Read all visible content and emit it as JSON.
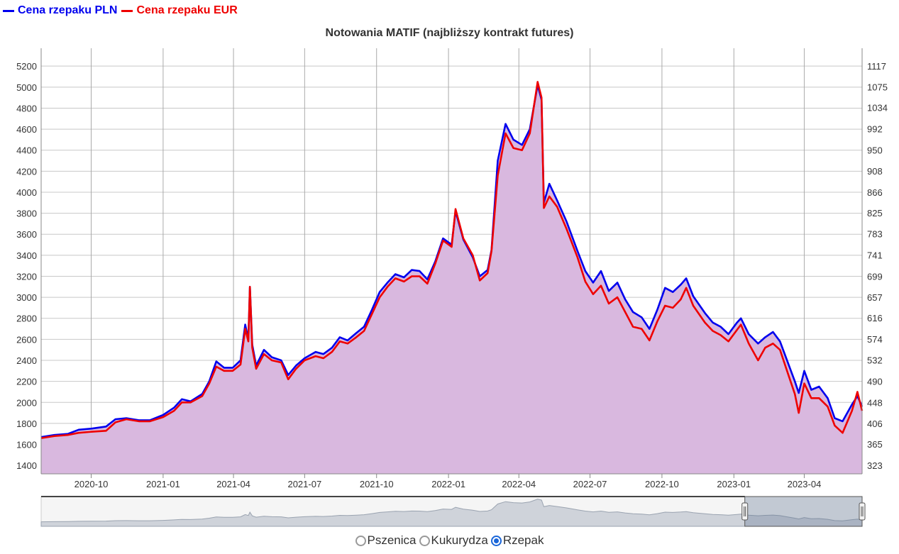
{
  "legend": {
    "pln_label": "Cena rzepaku PLN",
    "eur_label": "Cena rzepaku EUR",
    "pln_color": "#0000ee",
    "eur_color": "#ee0000"
  },
  "radios": {
    "options": [
      "Pszenica",
      "Kukurydza",
      "Rzepak"
    ],
    "selected": "Rzepak"
  },
  "chart_data": {
    "type": "area",
    "title": "Notowania MATIF (najbliższy kontrakt futures)",
    "fill_color": "#d9b8df",
    "x_ticks": [
      "2020-10",
      "2021-01",
      "2021-04",
      "2021-07",
      "2021-10",
      "2022-01",
      "2022-04",
      "2022-07",
      "2022-10",
      "2023-01",
      "2023-04"
    ],
    "x_range": [
      "2020-07-29",
      "2023-06-14"
    ],
    "y_left": {
      "ticks": [
        1400,
        1600,
        1800,
        2000,
        2200,
        2400,
        2600,
        2800,
        3000,
        3200,
        3400,
        3600,
        3800,
        4000,
        4200,
        4400,
        4600,
        4800,
        5000,
        5200
      ],
      "range": [
        1320,
        5370
      ]
    },
    "y_right": {
      "ticks": [
        323,
        365,
        406,
        448,
        490,
        532,
        574,
        616,
        657,
        699,
        741,
        783,
        825,
        866,
        908,
        950,
        992,
        1034,
        1075,
        1117
      ],
      "range": [
        306,
        1152
      ]
    },
    "grid": true,
    "legend_position": "top-left",
    "series": [
      {
        "name": "Cena rzepaku PLN",
        "color": "#0000ee",
        "points": [
          [
            "2020-07-29",
            1670
          ],
          [
            "2020-08-15",
            1690
          ],
          [
            "2020-09-01",
            1700
          ],
          [
            "2020-09-15",
            1740
          ],
          [
            "2020-10-01",
            1750
          ],
          [
            "2020-10-20",
            1770
          ],
          [
            "2020-11-01",
            1840
          ],
          [
            "2020-11-15",
            1850
          ],
          [
            "2020-12-01",
            1830
          ],
          [
            "2020-12-15",
            1830
          ],
          [
            "2021-01-01",
            1880
          ],
          [
            "2021-01-15",
            1950
          ],
          [
            "2021-01-25",
            2030
          ],
          [
            "2021-02-05",
            2010
          ],
          [
            "2021-02-20",
            2080
          ],
          [
            "2021-03-01",
            2200
          ],
          [
            "2021-03-10",
            2390
          ],
          [
            "2021-03-20",
            2330
          ],
          [
            "2021-03-31",
            2330
          ],
          [
            "2021-04-10",
            2400
          ],
          [
            "2021-04-16",
            2740
          ],
          [
            "2021-04-20",
            2600
          ],
          [
            "2021-04-22",
            3100
          ],
          [
            "2021-04-25",
            2550
          ],
          [
            "2021-04-30",
            2350
          ],
          [
            "2021-05-10",
            2500
          ],
          [
            "2021-05-20",
            2430
          ],
          [
            "2021-06-01",
            2400
          ],
          [
            "2021-06-10",
            2260
          ],
          [
            "2021-06-20",
            2350
          ],
          [
            "2021-07-01",
            2420
          ],
          [
            "2021-07-15",
            2480
          ],
          [
            "2021-07-25",
            2460
          ],
          [
            "2021-08-05",
            2520
          ],
          [
            "2021-08-15",
            2620
          ],
          [
            "2021-08-25",
            2590
          ],
          [
            "2021-09-05",
            2660
          ],
          [
            "2021-09-15",
            2720
          ],
          [
            "2021-09-25",
            2880
          ],
          [
            "2021-10-05",
            3050
          ],
          [
            "2021-10-15",
            3140
          ],
          [
            "2021-10-25",
            3220
          ],
          [
            "2021-11-05",
            3190
          ],
          [
            "2021-11-15",
            3260
          ],
          [
            "2021-11-25",
            3250
          ],
          [
            "2021-12-05",
            3170
          ],
          [
            "2021-12-15",
            3340
          ],
          [
            "2021-12-25",
            3560
          ],
          [
            "2022-01-05",
            3500
          ],
          [
            "2022-01-10",
            3820
          ],
          [
            "2022-01-20",
            3550
          ],
          [
            "2022-02-01",
            3380
          ],
          [
            "2022-02-10",
            3200
          ],
          [
            "2022-02-20",
            3260
          ],
          [
            "2022-02-25",
            3450
          ],
          [
            "2022-03-05",
            4300
          ],
          [
            "2022-03-15",
            4650
          ],
          [
            "2022-03-25",
            4500
          ],
          [
            "2022-04-05",
            4450
          ],
          [
            "2022-04-15",
            4600
          ],
          [
            "2022-04-25",
            5020
          ],
          [
            "2022-04-30",
            4880
          ],
          [
            "2022-05-03",
            3900
          ],
          [
            "2022-05-10",
            4080
          ],
          [
            "2022-05-20",
            3920
          ],
          [
            "2022-06-01",
            3720
          ],
          [
            "2022-06-15",
            3440
          ],
          [
            "2022-06-25",
            3250
          ],
          [
            "2022-07-05",
            3140
          ],
          [
            "2022-07-15",
            3250
          ],
          [
            "2022-07-25",
            3060
          ],
          [
            "2022-08-05",
            3140
          ],
          [
            "2022-08-15",
            2980
          ],
          [
            "2022-08-25",
            2860
          ],
          [
            "2022-09-05",
            2810
          ],
          [
            "2022-09-15",
            2700
          ],
          [
            "2022-09-25",
            2880
          ],
          [
            "2022-10-05",
            3090
          ],
          [
            "2022-10-15",
            3050
          ],
          [
            "2022-10-25",
            3120
          ],
          [
            "2022-11-01",
            3180
          ],
          [
            "2022-11-10",
            3010
          ],
          [
            "2022-11-25",
            2850
          ],
          [
            "2022-12-05",
            2760
          ],
          [
            "2022-12-15",
            2720
          ],
          [
            "2022-12-25",
            2650
          ],
          [
            "2023-01-05",
            2760
          ],
          [
            "2023-01-10",
            2800
          ],
          [
            "2023-01-20",
            2650
          ],
          [
            "2023-02-01",
            2560
          ],
          [
            "2023-02-10",
            2620
          ],
          [
            "2023-02-20",
            2670
          ],
          [
            "2023-03-01",
            2580
          ],
          [
            "2023-03-10",
            2400
          ],
          [
            "2023-03-20",
            2200
          ],
          [
            "2023-03-25",
            2090
          ],
          [
            "2023-04-01",
            2300
          ],
          [
            "2023-04-10",
            2120
          ],
          [
            "2023-04-20",
            2150
          ],
          [
            "2023-05-01",
            2040
          ],
          [
            "2023-05-10",
            1850
          ],
          [
            "2023-05-20",
            1820
          ],
          [
            "2023-06-01",
            1980
          ],
          [
            "2023-06-08",
            2060
          ],
          [
            "2023-06-14",
            1960
          ]
        ]
      },
      {
        "name": "Cena rzepaku EUR",
        "color": "#ee0000",
        "points": [
          [
            "2020-07-29",
            1660
          ],
          [
            "2020-08-15",
            1680
          ],
          [
            "2020-09-01",
            1690
          ],
          [
            "2020-09-15",
            1710
          ],
          [
            "2020-10-01",
            1720
          ],
          [
            "2020-10-20",
            1730
          ],
          [
            "2020-11-01",
            1810
          ],
          [
            "2020-11-15",
            1840
          ],
          [
            "2020-12-01",
            1820
          ],
          [
            "2020-12-15",
            1820
          ],
          [
            "2021-01-01",
            1860
          ],
          [
            "2021-01-15",
            1920
          ],
          [
            "2021-01-25",
            2000
          ],
          [
            "2021-02-05",
            2000
          ],
          [
            "2021-02-20",
            2060
          ],
          [
            "2021-03-01",
            2180
          ],
          [
            "2021-03-10",
            2340
          ],
          [
            "2021-03-20",
            2300
          ],
          [
            "2021-03-31",
            2300
          ],
          [
            "2021-04-10",
            2360
          ],
          [
            "2021-04-16",
            2700
          ],
          [
            "2021-04-20",
            2580
          ],
          [
            "2021-04-22",
            3100
          ],
          [
            "2021-04-25",
            2520
          ],
          [
            "2021-04-30",
            2320
          ],
          [
            "2021-05-10",
            2460
          ],
          [
            "2021-05-20",
            2400
          ],
          [
            "2021-06-01",
            2380
          ],
          [
            "2021-06-10",
            2220
          ],
          [
            "2021-06-20",
            2320
          ],
          [
            "2021-07-01",
            2400
          ],
          [
            "2021-07-15",
            2440
          ],
          [
            "2021-07-25",
            2420
          ],
          [
            "2021-08-05",
            2480
          ],
          [
            "2021-08-15",
            2580
          ],
          [
            "2021-08-25",
            2560
          ],
          [
            "2021-09-05",
            2620
          ],
          [
            "2021-09-15",
            2680
          ],
          [
            "2021-09-25",
            2840
          ],
          [
            "2021-10-05",
            3000
          ],
          [
            "2021-10-15",
            3100
          ],
          [
            "2021-10-25",
            3180
          ],
          [
            "2021-11-05",
            3150
          ],
          [
            "2021-11-15",
            3200
          ],
          [
            "2021-11-25",
            3200
          ],
          [
            "2021-12-05",
            3130
          ],
          [
            "2021-12-15",
            3320
          ],
          [
            "2021-12-25",
            3540
          ],
          [
            "2022-01-05",
            3480
          ],
          [
            "2022-01-10",
            3840
          ],
          [
            "2022-01-20",
            3560
          ],
          [
            "2022-02-01",
            3400
          ],
          [
            "2022-02-10",
            3160
          ],
          [
            "2022-02-20",
            3230
          ],
          [
            "2022-02-25",
            3440
          ],
          [
            "2022-03-05",
            4160
          ],
          [
            "2022-03-15",
            4560
          ],
          [
            "2022-03-25",
            4420
          ],
          [
            "2022-04-05",
            4400
          ],
          [
            "2022-04-15",
            4560
          ],
          [
            "2022-04-25",
            5050
          ],
          [
            "2022-04-30",
            4900
          ],
          [
            "2022-05-03",
            3850
          ],
          [
            "2022-05-10",
            3960
          ],
          [
            "2022-05-20",
            3860
          ],
          [
            "2022-06-01",
            3650
          ],
          [
            "2022-06-15",
            3380
          ],
          [
            "2022-06-25",
            3150
          ],
          [
            "2022-07-05",
            3030
          ],
          [
            "2022-07-15",
            3110
          ],
          [
            "2022-07-25",
            2940
          ],
          [
            "2022-08-05",
            3000
          ],
          [
            "2022-08-15",
            2860
          ],
          [
            "2022-08-25",
            2720
          ],
          [
            "2022-09-05",
            2700
          ],
          [
            "2022-09-15",
            2590
          ],
          [
            "2022-09-25",
            2770
          ],
          [
            "2022-10-05",
            2920
          ],
          [
            "2022-10-15",
            2900
          ],
          [
            "2022-10-25",
            2980
          ],
          [
            "2022-11-01",
            3090
          ],
          [
            "2022-11-10",
            2920
          ],
          [
            "2022-11-25",
            2760
          ],
          [
            "2022-12-05",
            2680
          ],
          [
            "2022-12-15",
            2640
          ],
          [
            "2022-12-25",
            2580
          ],
          [
            "2023-01-05",
            2690
          ],
          [
            "2023-01-10",
            2740
          ],
          [
            "2023-01-20",
            2560
          ],
          [
            "2023-02-01",
            2400
          ],
          [
            "2023-02-10",
            2520
          ],
          [
            "2023-02-20",
            2560
          ],
          [
            "2023-03-01",
            2500
          ],
          [
            "2023-03-10",
            2300
          ],
          [
            "2023-03-20",
            2080
          ],
          [
            "2023-03-25",
            1900
          ],
          [
            "2023-04-01",
            2180
          ],
          [
            "2023-04-10",
            2040
          ],
          [
            "2023-04-20",
            2040
          ],
          [
            "2023-05-01",
            1960
          ],
          [
            "2023-05-10",
            1780
          ],
          [
            "2023-05-20",
            1710
          ],
          [
            "2023-06-01",
            1920
          ],
          [
            "2023-06-08",
            2100
          ],
          [
            "2023-06-14",
            1920
          ]
        ]
      }
    ],
    "navigator_range": [
      "2023-01-15",
      "2023-06-14"
    ]
  }
}
